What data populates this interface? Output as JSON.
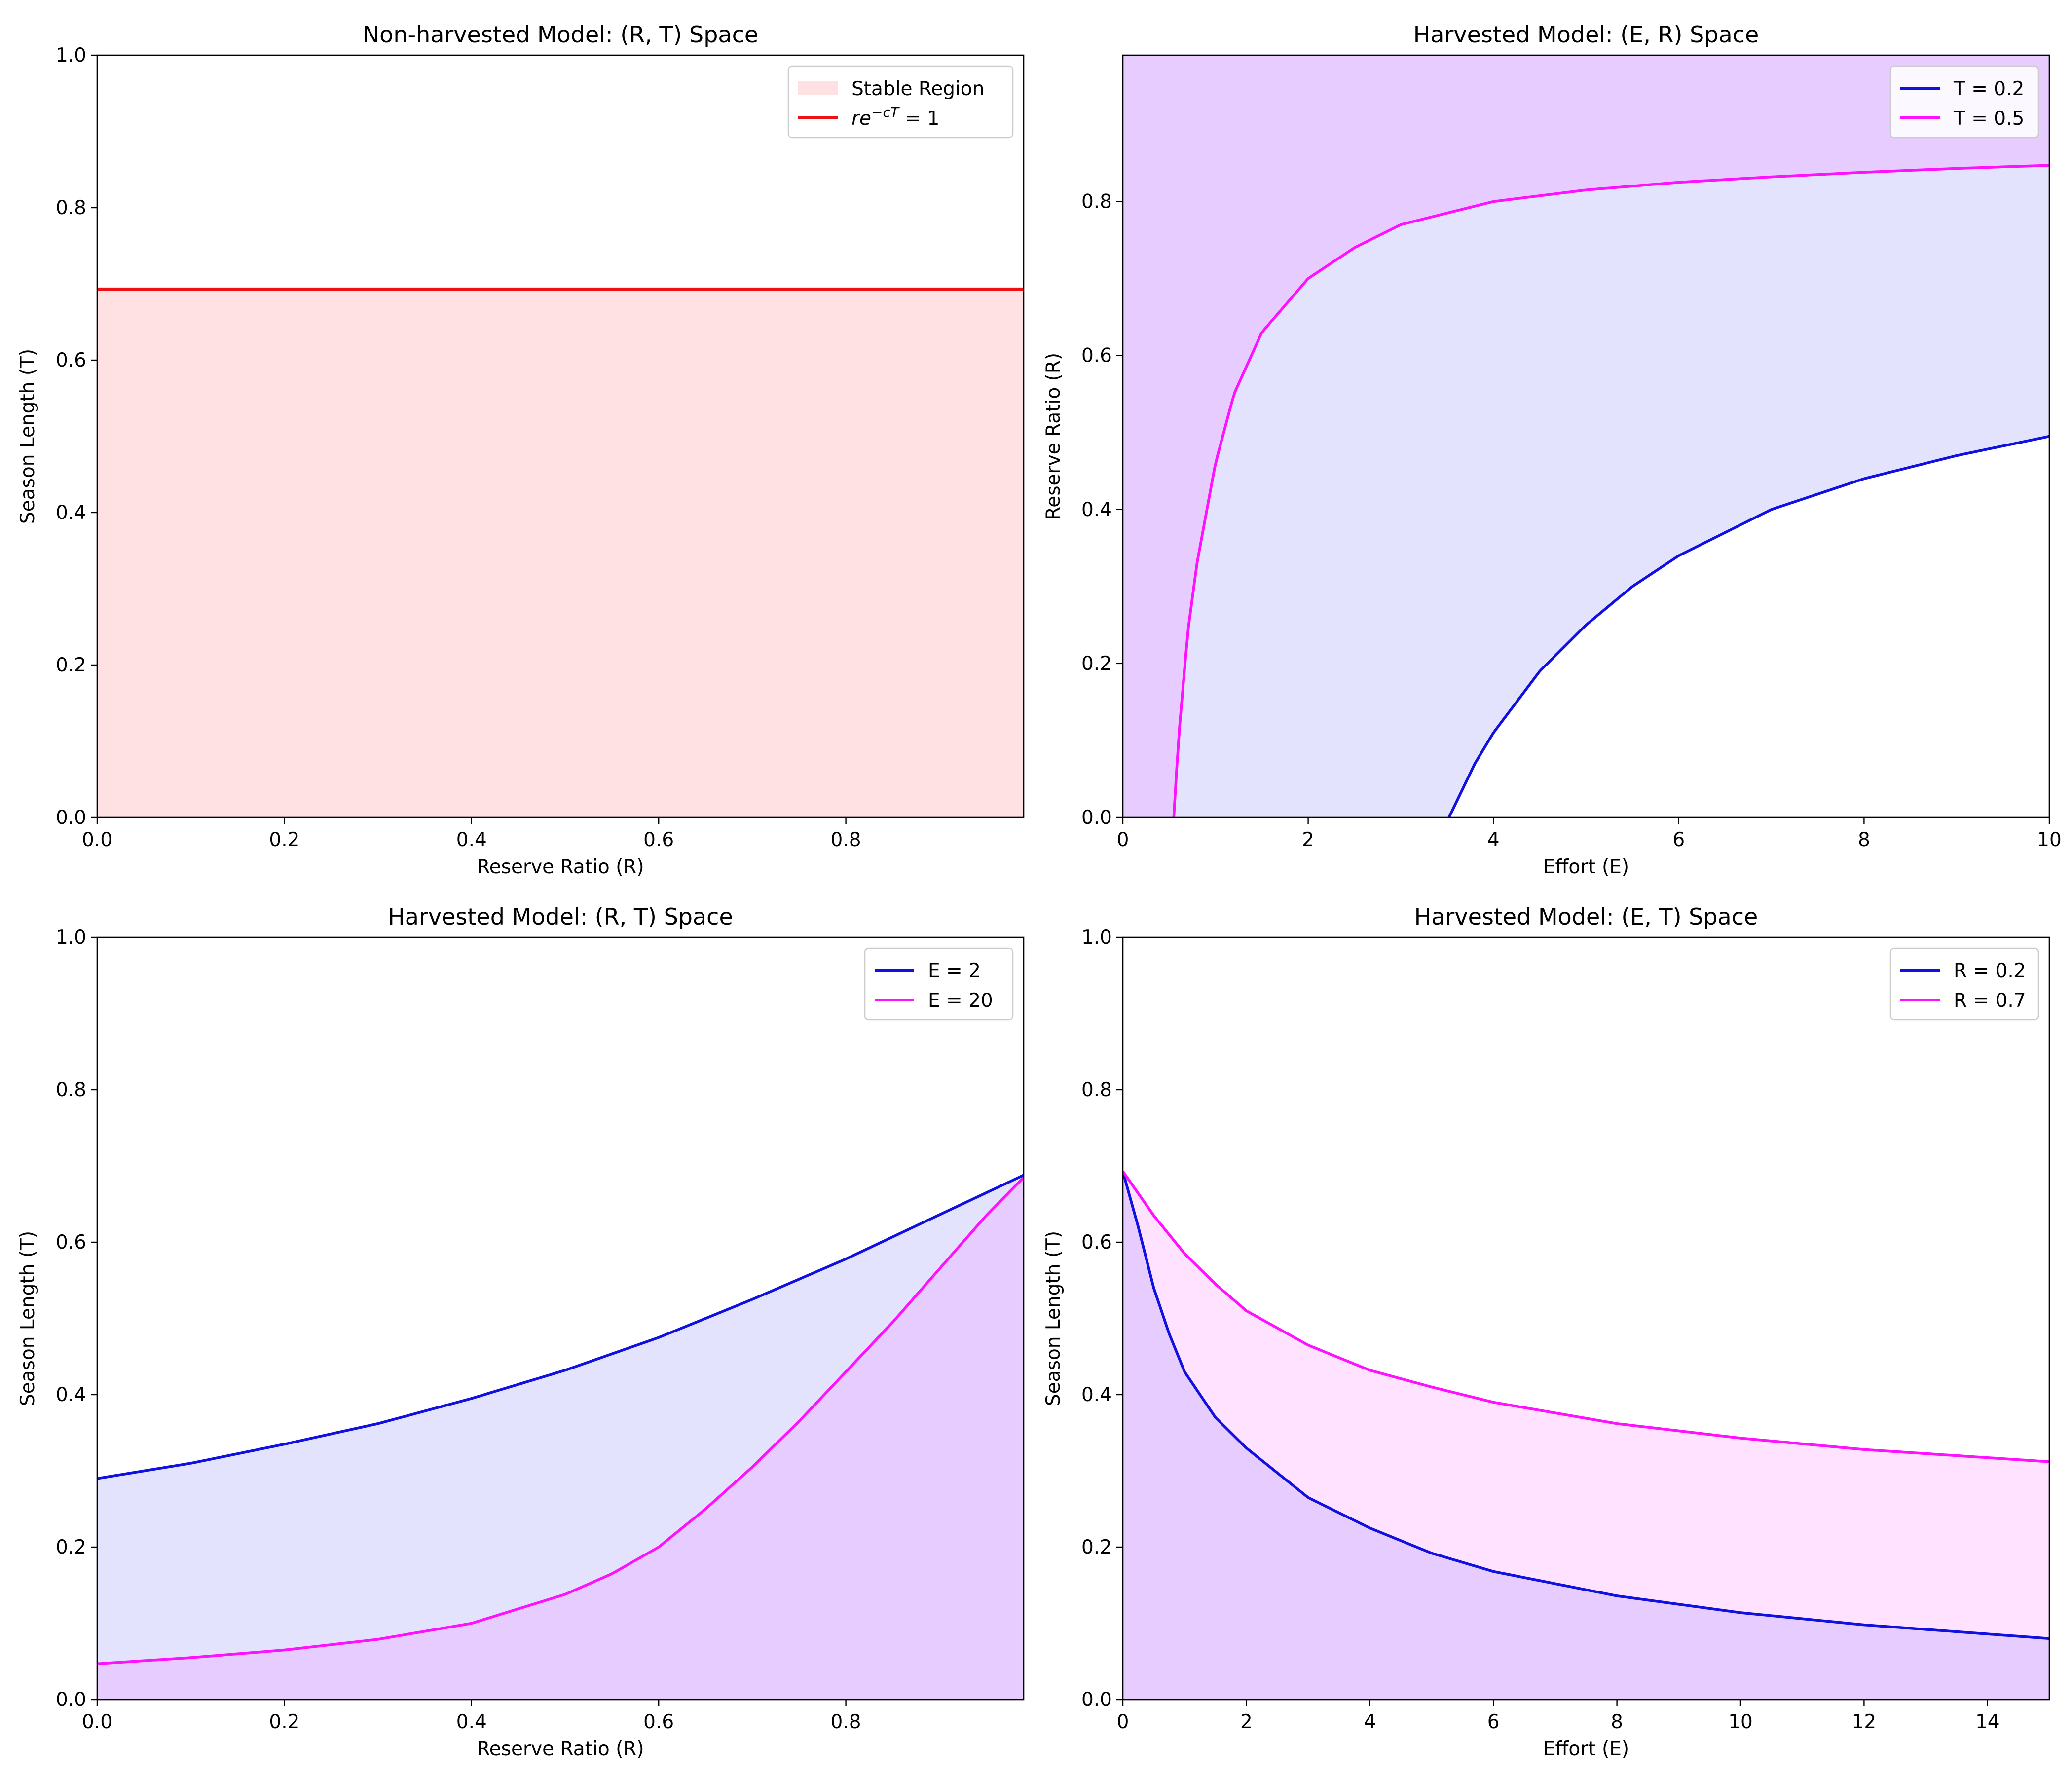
{
  "chart_data": [
    {
      "type": "area",
      "title": "Non-harvested Model: (R, T) Space",
      "xlabel": "Reserve Ratio (R)",
      "ylabel": "Season Length (T)",
      "xlim": [
        0,
        0.99
      ],
      "ylim": [
        0,
        1.0
      ],
      "xticks": [
        "0.0",
        "0.2",
        "0.4",
        "0.6",
        "0.8"
      ],
      "yticks": [
        "0.0",
        "0.2",
        "0.4",
        "0.6",
        "0.8",
        "1.0"
      ],
      "xtick_values": [
        0,
        0.2,
        0.4,
        0.6,
        0.8
      ],
      "ytick_values": [
        0,
        0.2,
        0.4,
        0.6,
        0.8,
        1.0
      ],
      "legend_position": "top-right",
      "fills": [
        {
          "name": "Stable Region",
          "color": "#ffe1e3",
          "x": [
            0,
            0.99
          ],
          "lower": [
            0,
            0
          ],
          "upper": [
            0.693,
            0.693
          ]
        }
      ],
      "series": [
        {
          "name": "re^{-cT} = 1",
          "color": "#ee1111",
          "x": [
            0,
            0.99
          ],
          "y": [
            0.693,
            0.693
          ]
        }
      ]
    },
    {
      "type": "line",
      "title": "Harvested Model: (E, R) Space",
      "xlabel": "Effort (E)",
      "ylabel": "Reserve Ratio (R)",
      "xlim": [
        0,
        10
      ],
      "ylim": [
        0,
        0.99
      ],
      "xticks": [
        "0",
        "2",
        "4",
        "6",
        "8",
        "10"
      ],
      "yticks": [
        "0.0",
        "0.2",
        "0.4",
        "0.6",
        "0.8"
      ],
      "xtick_values": [
        0,
        2,
        4,
        6,
        8,
        10
      ],
      "ytick_values": [
        0,
        0.2,
        0.4,
        0.6,
        0.8
      ],
      "legend_position": "top-right",
      "series": [
        {
          "name": "T = 0.2",
          "color": "#1010e0",
          "x": [
            3.52,
            3.8,
            4.0,
            4.5,
            5.0,
            5.5,
            6.0,
            7.0,
            8.0,
            9.0,
            10.0
          ],
          "y": [
            0.0,
            0.07,
            0.11,
            0.19,
            0.25,
            0.3,
            0.34,
            0.4,
            0.44,
            0.47,
            0.495
          ]
        },
        {
          "name": "T = 0.5",
          "color": "#ff10ff",
          "x": [
            0.55,
            0.6,
            0.7,
            0.8,
            1.0,
            1.2,
            1.5,
            2.0,
            2.5,
            3.0,
            4.0,
            5.0,
            6.0,
            7.0,
            8.0,
            9.0,
            10.0
          ],
          "y": [
            0.0,
            0.1,
            0.24,
            0.33,
            0.46,
            0.55,
            0.63,
            0.7,
            0.74,
            0.77,
            0.8,
            0.815,
            0.825,
            0.832,
            0.838,
            0.843,
            0.847
          ]
        }
      ],
      "fills": [
        {
          "name": "T = 0.5 region",
          "color": "#e6ccff",
          "upper_edge": "ylim",
          "under": "T = 0.5"
        },
        {
          "name": "T = 0.2 region",
          "color": "#e3e3fd",
          "between": [
            "T = 0.2",
            "T = 0.5"
          ]
        }
      ]
    },
    {
      "type": "line",
      "title": "Harvested Model: (R, T) Space",
      "xlabel": "Reserve Ratio (R)",
      "ylabel": "Season Length (T)",
      "xlim": [
        0,
        0.99
      ],
      "ylim": [
        0,
        1.0
      ],
      "xticks": [
        "0.0",
        "0.2",
        "0.4",
        "0.6",
        "0.8"
      ],
      "yticks": [
        "0.0",
        "0.2",
        "0.4",
        "0.6",
        "0.8",
        "1.0"
      ],
      "xtick_values": [
        0,
        0.2,
        0.4,
        0.6,
        0.8
      ],
      "ytick_values": [
        0,
        0.2,
        0.4,
        0.6,
        0.8,
        1.0
      ],
      "legend_position": "top-right",
      "series": [
        {
          "name": "E = 2",
          "color": "#1010e0",
          "x": [
            0,
            0.1,
            0.2,
            0.3,
            0.4,
            0.5,
            0.6,
            0.7,
            0.8,
            0.9,
            0.99
          ],
          "y": [
            0.29,
            0.31,
            0.335,
            0.362,
            0.395,
            0.432,
            0.475,
            0.525,
            0.578,
            0.636,
            0.688
          ]
        },
        {
          "name": "E = 20",
          "color": "#ff10ff",
          "x": [
            0,
            0.1,
            0.2,
            0.3,
            0.4,
            0.5,
            0.55,
            0.6,
            0.65,
            0.7,
            0.75,
            0.8,
            0.85,
            0.9,
            0.95,
            0.99
          ],
          "y": [
            0.047,
            0.055,
            0.065,
            0.079,
            0.1,
            0.138,
            0.165,
            0.2,
            0.25,
            0.305,
            0.365,
            0.43,
            0.495,
            0.565,
            0.635,
            0.685
          ]
        }
      ],
      "fills": [
        {
          "name": "E = 2 region",
          "color": "#e3e3fd",
          "under": "E = 2"
        },
        {
          "name": "E = 20 region",
          "color": "#e6ccff",
          "under": "E = 20"
        }
      ]
    },
    {
      "type": "line",
      "title": "Harvested Model: (E, T) Space",
      "xlabel": "Effort (E)",
      "ylabel": "Season Length (T)",
      "xlim": [
        0,
        15
      ],
      "ylim": [
        0,
        1.0
      ],
      "xticks": [
        "0",
        "2",
        "4",
        "6",
        "8",
        "10",
        "12",
        "14"
      ],
      "yticks": [
        "0.0",
        "0.2",
        "0.4",
        "0.6",
        "0.8",
        "1.0"
      ],
      "xtick_values": [
        0,
        2,
        4,
        6,
        8,
        10,
        12,
        14
      ],
      "ytick_values": [
        0,
        0.2,
        0.4,
        0.6,
        0.8,
        1.0
      ],
      "legend_position": "top-right",
      "series": [
        {
          "name": "R = 0.2",
          "color": "#1010e0",
          "x": [
            0,
            0.25,
            0.5,
            0.75,
            1.0,
            1.5,
            2.0,
            3.0,
            4.0,
            5.0,
            6.0,
            8.0,
            10.0,
            12.0,
            15.0
          ],
          "y": [
            0.693,
            0.62,
            0.54,
            0.48,
            0.43,
            0.37,
            0.33,
            0.265,
            0.225,
            0.192,
            0.168,
            0.136,
            0.114,
            0.098,
            0.08
          ]
        },
        {
          "name": "R = 0.7",
          "color": "#ff10ff",
          "x": [
            0,
            0.5,
            1.0,
            1.5,
            2.0,
            3.0,
            4.0,
            5.0,
            6.0,
            8.0,
            10.0,
            12.0,
            15.0
          ],
          "y": [
            0.693,
            0.635,
            0.585,
            0.545,
            0.51,
            0.465,
            0.432,
            0.41,
            0.39,
            0.362,
            0.343,
            0.328,
            0.312
          ]
        }
      ],
      "fills": [
        {
          "name": "R = 0.7 region",
          "color": "#ffe2ff",
          "under": "R = 0.7"
        },
        {
          "name": "R = 0.2 region",
          "color": "#e6ccff",
          "under": "R = 0.2"
        }
      ]
    }
  ]
}
